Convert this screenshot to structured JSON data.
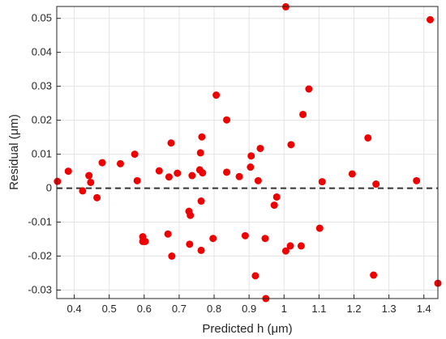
{
  "chart_data": {
    "type": "scatter",
    "xlabel": "Predicted h (μm)",
    "ylabel": "Residual (μm)",
    "xlim": [
      0.35,
      1.44
    ],
    "ylim": [
      -0.0325,
      0.0535
    ],
    "x_ticks": [
      0.4,
      0.5,
      0.6,
      0.7,
      0.8,
      0.9,
      1.0,
      1.1,
      1.2,
      1.3,
      1.4
    ],
    "x_tick_labels": [
      "0.4",
      "0.5",
      "0.6",
      "0.7",
      "0.8",
      "0.9",
      "1",
      "1.1",
      "1.2",
      "1.3",
      "1.4"
    ],
    "y_ticks": [
      -0.03,
      -0.02,
      -0.01,
      0,
      0.01,
      0.02,
      0.03,
      0.04,
      0.05
    ],
    "y_tick_labels": [
      "-0.03",
      "-0.02",
      "-0.01",
      "0",
      "0.01",
      "0.02",
      "0.03",
      "0.04",
      "0.05"
    ],
    "grid": true,
    "reference_line": {
      "y": 0,
      "style": "dashed",
      "color": "#333333"
    },
    "marker_color": "#ee0000",
    "series": [
      {
        "points": [
          [
            0.352,
            0.002
          ],
          [
            0.383,
            0.005
          ],
          [
            0.424,
            -0.0008
          ],
          [
            0.442,
            0.0037
          ],
          [
            0.447,
            0.0017
          ],
          [
            0.465,
            -0.0028
          ],
          [
            0.48,
            0.0075
          ],
          [
            0.532,
            0.0072
          ],
          [
            0.573,
            0.01
          ],
          [
            0.58,
            0.0022
          ],
          [
            0.596,
            -0.0143
          ],
          [
            0.596,
            -0.0157
          ],
          [
            0.603,
            -0.0157
          ],
          [
            0.643,
            0.0051
          ],
          [
            0.668,
            -0.0135
          ],
          [
            0.671,
            0.0033
          ],
          [
            0.677,
            0.0133
          ],
          [
            0.679,
            -0.02
          ],
          [
            0.695,
            0.0044
          ],
          [
            0.728,
            -0.0068
          ],
          [
            0.73,
            -0.0165
          ],
          [
            0.732,
            -0.008
          ],
          [
            0.737,
            0.0037
          ],
          [
            0.759,
            0.0054
          ],
          [
            0.761,
            0.0104
          ],
          [
            0.763,
            -0.0038
          ],
          [
            0.763,
            -0.0183
          ],
          [
            0.765,
            0.0151
          ],
          [
            0.767,
            0.0045
          ],
          [
            0.797,
            -0.0148
          ],
          [
            0.806,
            0.0274
          ],
          [
            0.836,
            0.0047
          ],
          [
            0.836,
            0.0201
          ],
          [
            0.872,
            0.0034
          ],
          [
            0.889,
            -0.014
          ],
          [
            0.904,
            0.0062
          ],
          [
            0.906,
            0.0095
          ],
          [
            0.918,
            -0.0258
          ],
          [
            0.926,
            0.0022
          ],
          [
            0.932,
            0.0117
          ],
          [
            0.946,
            -0.0148
          ],
          [
            0.948,
            -0.0325
          ],
          [
            0.972,
            -0.005
          ],
          [
            0.979,
            -0.0026
          ],
          [
            1.005,
            -0.0185
          ],
          [
            1.005,
            0.0534
          ],
          [
            1.018,
            -0.017
          ],
          [
            1.02,
            0.0128
          ],
          [
            1.049,
            -0.017
          ],
          [
            1.054,
            0.0217
          ],
          [
            1.071,
            0.0292
          ],
          [
            1.102,
            -0.0118
          ],
          [
            1.109,
            0.0019
          ],
          [
            1.195,
            0.0042
          ],
          [
            1.24,
            0.0148
          ],
          [
            1.256,
            -0.0256
          ],
          [
            1.263,
            0.0012
          ],
          [
            1.379,
            0.0022
          ],
          [
            1.418,
            0.0496
          ],
          [
            1.44,
            -0.028
          ]
        ]
      }
    ]
  }
}
